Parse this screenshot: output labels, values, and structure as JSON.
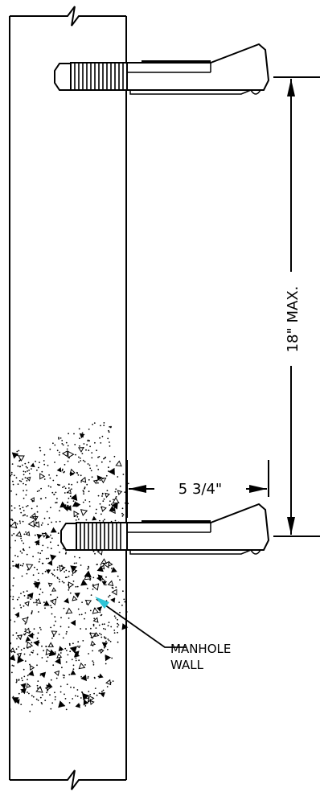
{
  "dimensions": {
    "vertical_spacing": "18\" MAX.",
    "projection": "5 3/4\""
  },
  "callout": {
    "line1": "MANHOLE",
    "line2": "WALL"
  },
  "colors": {
    "line": "#000000",
    "leader_tip": "#2ec4d6",
    "background": "#ffffff"
  }
}
